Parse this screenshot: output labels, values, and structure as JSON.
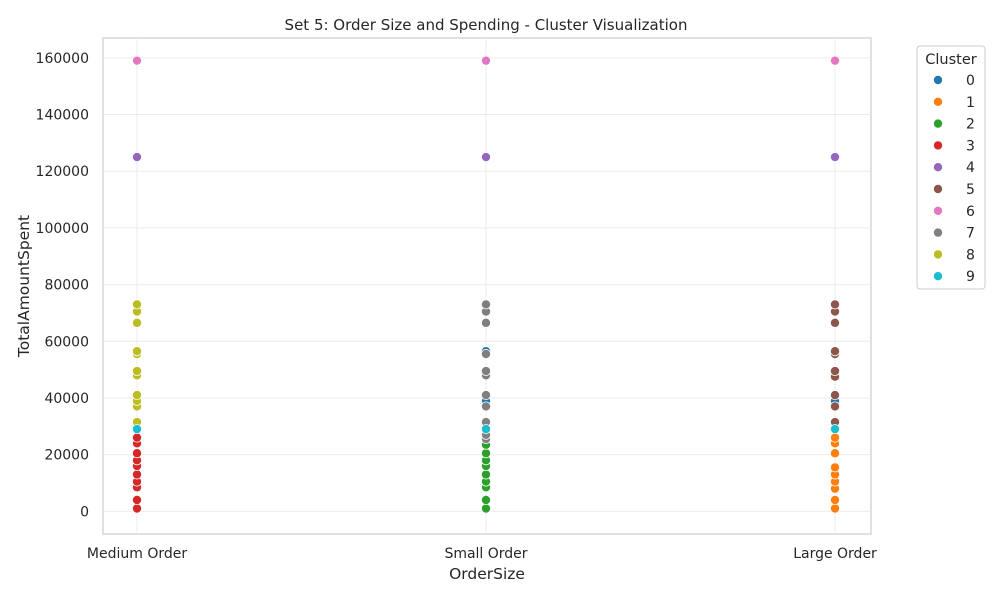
{
  "chart_data": {
    "type": "scatter",
    "title": "Set 5: Order Size and Spending - Cluster Visualization",
    "xlabel": "OrderSize",
    "ylabel": "TotalAmountSpent",
    "categories": [
      "Medium Order",
      "Small Order",
      "Large Order"
    ],
    "ylim": [
      -8000,
      167000
    ],
    "yticks": [
      0,
      20000,
      40000,
      60000,
      80000,
      100000,
      120000,
      140000,
      160000
    ],
    "grid": true,
    "legend": {
      "title": "Cluster",
      "placement": "outside-right",
      "entries": [
        "0",
        "1",
        "2",
        "3",
        "4",
        "5",
        "6",
        "7",
        "8",
        "9"
      ]
    },
    "colors": [
      "#1f77b4",
      "#ff7f0e",
      "#2ca02c",
      "#d62728",
      "#9467bd",
      "#8c564b",
      "#e377c2",
      "#7f7f7f",
      "#bcbd22",
      "#17becf"
    ],
    "series": [
      {
        "name": "0",
        "points": [
          [
            "Small Order",
            56500
          ],
          [
            "Small Order",
            39000
          ],
          [
            "Large Order",
            39000
          ]
        ]
      },
      {
        "name": "1",
        "points": [
          [
            "Large Order",
            1000
          ],
          [
            "Large Order",
            4000
          ],
          [
            "Large Order",
            8000
          ],
          [
            "Large Order",
            10500
          ],
          [
            "Large Order",
            13000
          ],
          [
            "Large Order",
            15500
          ],
          [
            "Large Order",
            20500
          ],
          [
            "Large Order",
            24000
          ],
          [
            "Large Order",
            26000
          ]
        ]
      },
      {
        "name": "2",
        "points": [
          [
            "Small Order",
            1000
          ],
          [
            "Small Order",
            4000
          ],
          [
            "Small Order",
            8500
          ],
          [
            "Small Order",
            10500
          ],
          [
            "Small Order",
            13000
          ],
          [
            "Small Order",
            16000
          ],
          [
            "Small Order",
            18000
          ],
          [
            "Small Order",
            20500
          ],
          [
            "Small Order",
            23500
          ]
        ]
      },
      {
        "name": "3",
        "points": [
          [
            "Medium Order",
            1000
          ],
          [
            "Medium Order",
            4000
          ],
          [
            "Medium Order",
            8500
          ],
          [
            "Medium Order",
            10500
          ],
          [
            "Medium Order",
            13000
          ],
          [
            "Medium Order",
            16000
          ],
          [
            "Medium Order",
            18000
          ],
          [
            "Medium Order",
            20500
          ],
          [
            "Medium Order",
            24000
          ],
          [
            "Medium Order",
            26000
          ]
        ]
      },
      {
        "name": "4",
        "points": [
          [
            "Medium Order",
            125000
          ],
          [
            "Small Order",
            125000
          ],
          [
            "Large Order",
            125000
          ]
        ]
      },
      {
        "name": "5",
        "points": [
          [
            "Large Order",
            31500
          ],
          [
            "Large Order",
            37000
          ],
          [
            "Large Order",
            41000
          ],
          [
            "Large Order",
            47500
          ],
          [
            "Large Order",
            49500
          ],
          [
            "Large Order",
            55500
          ],
          [
            "Large Order",
            56500
          ],
          [
            "Large Order",
            66500
          ],
          [
            "Large Order",
            70500
          ],
          [
            "Large Order",
            73000
          ]
        ]
      },
      {
        "name": "6",
        "points": [
          [
            "Medium Order",
            159000
          ],
          [
            "Small Order",
            159000
          ],
          [
            "Large Order",
            159000
          ]
        ]
      },
      {
        "name": "7",
        "points": [
          [
            "Small Order",
            25500
          ],
          [
            "Small Order",
            27000
          ],
          [
            "Small Order",
            31500
          ],
          [
            "Small Order",
            37000
          ],
          [
            "Small Order",
            41000
          ],
          [
            "Small Order",
            48000
          ],
          [
            "Small Order",
            49500
          ],
          [
            "Small Order",
            55500
          ],
          [
            "Small Order",
            66500
          ],
          [
            "Small Order",
            70500
          ],
          [
            "Small Order",
            73000
          ]
        ]
      },
      {
        "name": "8",
        "points": [
          [
            "Medium Order",
            31500
          ],
          [
            "Medium Order",
            37000
          ],
          [
            "Medium Order",
            39000
          ],
          [
            "Medium Order",
            41000
          ],
          [
            "Medium Order",
            48000
          ],
          [
            "Medium Order",
            49500
          ],
          [
            "Medium Order",
            55500
          ],
          [
            "Medium Order",
            56500
          ],
          [
            "Medium Order",
            66500
          ],
          [
            "Medium Order",
            70500
          ],
          [
            "Medium Order",
            73000
          ]
        ]
      },
      {
        "name": "9",
        "points": [
          [
            "Medium Order",
            29000
          ],
          [
            "Small Order",
            29000
          ],
          [
            "Large Order",
            29000
          ]
        ]
      }
    ]
  }
}
